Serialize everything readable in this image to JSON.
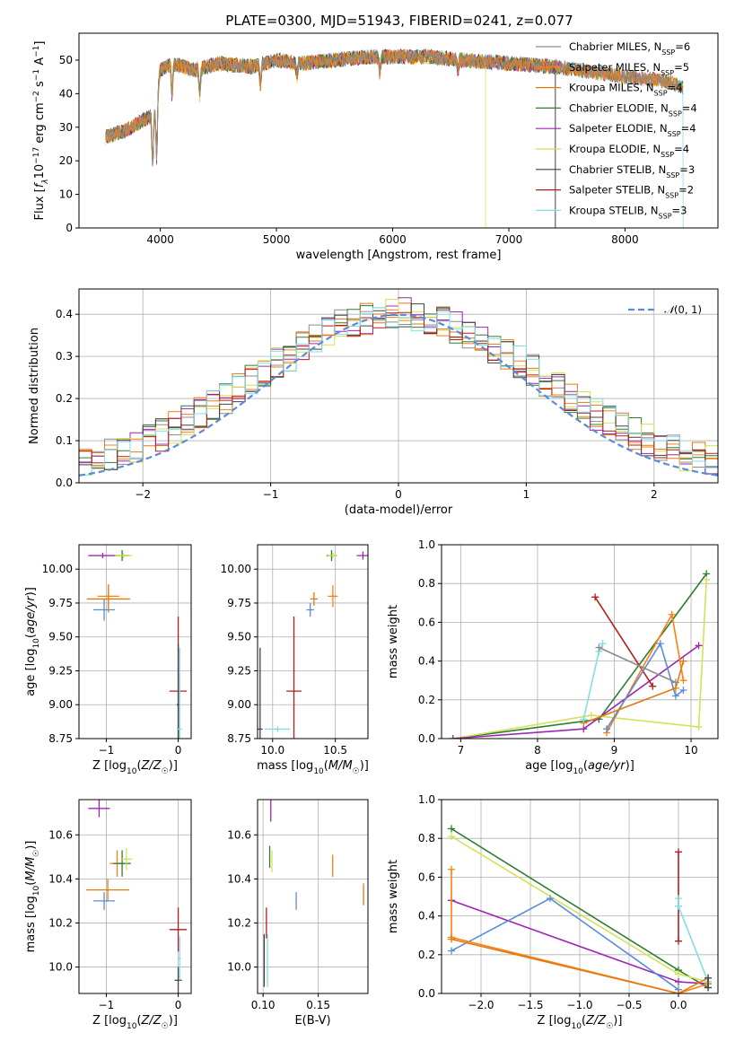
{
  "figure": {
    "title": "PLATE=0300, MJD=51943, FIBERID=0241, z=0.077"
  },
  "colors": {
    "Chabrier MILES": "#8c8c8c",
    "Salpeter MILES": "#ff7f0e",
    "Kroupa MILES": "#e07a10",
    "Chabrier ELODIE": "#2e7d32",
    "Salpeter ELODIE": "#9c27b0",
    "Kroupa ELODIE": "#d4e157",
    "Chabrier STELIB": "#424242",
    "Salpeter STELIB": "#b71c1c",
    "Kroupa STELIB": "#80deea",
    "gaussian": "#5b8bd8"
  },
  "chart_data": [
    {
      "id": "spectrum",
      "type": "line",
      "xlabel": "wavelength [Angstrom, rest frame]",
      "ylabel": "Flux [f_λ 10^-17 erg cm^-2 s^-1 A^-1]",
      "xlim": [
        3300,
        8800
      ],
      "ylim": [
        0,
        58
      ],
      "xticks": [
        4000,
        5000,
        6000,
        7000,
        8000
      ],
      "yticks": [
        0,
        10,
        20,
        30,
        40,
        50
      ],
      "grid": false,
      "legend_position": "right",
      "legend": [
        "Chabrier MILES, N_SSP=6",
        "Salpeter MILES, N_SSP=5",
        "Kroupa MILES, N_SSP=4",
        "Chabrier ELODIE, N_SSP=4",
        "Salpeter ELODIE, N_SSP=4",
        "Kroupa ELODIE, N_SSP=4",
        "Chabrier STELIB, N_SSP=3",
        "Salpeter STELIB, N_SSP=2",
        "Kroupa STELIB, N_SSP=3"
      ],
      "continuum": [
        [
          3530,
          27
        ],
        [
          3700,
          29
        ],
        [
          3850,
          32
        ],
        [
          3950,
          34
        ],
        [
          4000,
          47
        ],
        [
          4100,
          49
        ],
        [
          4300,
          47
        ],
        [
          4500,
          49
        ],
        [
          4800,
          48
        ],
        [
          5000,
          50
        ],
        [
          5200,
          49
        ],
        [
          5500,
          50
        ],
        [
          5800,
          51
        ],
        [
          6000,
          51
        ],
        [
          6300,
          51
        ],
        [
          6600,
          50
        ],
        [
          7000,
          49
        ],
        [
          7400,
          48
        ],
        [
          7800,
          46
        ],
        [
          8000,
          45
        ],
        [
          8300,
          44
        ],
        [
          8500,
          42
        ]
      ],
      "absorption_lines": [
        [
          3934,
          15
        ],
        [
          3969,
          18
        ],
        [
          4101,
          10
        ],
        [
          4340,
          8
        ],
        [
          4861,
          6
        ],
        [
          5175,
          4
        ],
        [
          5890,
          5
        ],
        [
          6563,
          3
        ]
      ]
    },
    {
      "id": "residuals",
      "type": "step",
      "xlabel": "(data-model)/error",
      "ylabel": "Normed distribution",
      "xlim": [
        -2.5,
        2.5
      ],
      "ylim": [
        0,
        0.46
      ],
      "xticks": [
        -2,
        -1,
        0,
        1,
        2
      ],
      "yticks": [
        0.0,
        0.1,
        0.2,
        0.3,
        0.4
      ],
      "grid": true,
      "legend_position": "upper right",
      "legend": [
        "N(0,1)"
      ],
      "bin_width": 0.1,
      "bin_start": -2.5,
      "noise_amplitude": 0.04
    },
    {
      "id": "age-vs-Z",
      "type": "errorbar",
      "xlabel": "Z [log10(Z/Z☉)]",
      "ylabel": "age [log10(age/yr)]",
      "xlim": [
        -1.38,
        0.18
      ],
      "ylim": [
        8.75,
        10.18
      ],
      "xticks": [
        -1,
        0
      ],
      "yticks": [
        8.75,
        9.0,
        9.25,
        9.5,
        9.75,
        10.0
      ],
      "grid": true,
      "points": [
        {
          "c": "Salpeter ELODIE",
          "x": -1.05,
          "y": 10.1,
          "xe": 0.2,
          "ye": 0.02
        },
        {
          "c": "Chabrier ELODIE",
          "x": -0.78,
          "y": 10.1,
          "xe": 0.1,
          "ye": 0.04
        },
        {
          "c": "Kroupa ELODIE",
          "x": -0.76,
          "y": 10.1,
          "xe": 0.12,
          "ye": 0.02
        },
        {
          "c": "Salpeter MILES",
          "x": -0.97,
          "y": 9.8,
          "xe": 0.15,
          "ye": 0.09
        },
        {
          "c": "Kroupa MILES",
          "x": -0.97,
          "y": 9.78,
          "xe": 0.3,
          "ye": 0.1
        },
        {
          "c": "gaussian",
          "x": -1.03,
          "y": 9.7,
          "xe": 0.15,
          "ye": 0.08
        },
        {
          "c": "Salpeter STELIB",
          "x": 0.0,
          "y": 9.1,
          "xe": 0.12,
          "ye": 0.55
        },
        {
          "c": "Chabrier STELIB",
          "x": 0.0,
          "y": 9.0,
          "xe": 0.02,
          "ye": 0.45
        },
        {
          "c": "Kroupa STELIB",
          "x": 0.02,
          "y": 8.82,
          "xe": 0.04,
          "ye": 0.6
        }
      ]
    },
    {
      "id": "age-vs-mass",
      "type": "errorbar",
      "xlabel": "mass [log10(M/M☉)]",
      "ylabel": "",
      "xlim": [
        9.88,
        10.76
      ],
      "ylim": [
        8.75,
        10.18
      ],
      "xticks": [
        10.0,
        10.5
      ],
      "yticks": [
        8.75,
        9.0,
        9.25,
        9.5,
        9.75,
        10.0
      ],
      "grid": true,
      "points": [
        {
          "c": "Salpeter ELODIE",
          "x": 10.72,
          "y": 10.1,
          "xe": 0.05,
          "ye": 0.03
        },
        {
          "c": "Chabrier ELODIE",
          "x": 10.47,
          "y": 10.1,
          "xe": 0.04,
          "ye": 0.04
        },
        {
          "c": "Kroupa ELODIE",
          "x": 10.48,
          "y": 10.1,
          "xe": 0.04,
          "ye": 0.02
        },
        {
          "c": "Kroupa MILES",
          "x": 10.33,
          "y": 9.78,
          "xe": 0.03,
          "ye": 0.05
        },
        {
          "c": "Salpeter MILES",
          "x": 10.48,
          "y": 9.8,
          "xe": 0.04,
          "ye": 0.08
        },
        {
          "c": "gaussian",
          "x": 10.3,
          "y": 9.7,
          "xe": 0.03,
          "ye": 0.05
        },
        {
          "c": "Salpeter STELIB",
          "x": 10.17,
          "y": 9.1,
          "xe": 0.06,
          "ye": 0.55
        },
        {
          "c": "Chabrier STELIB",
          "x": 9.9,
          "y": 8.82,
          "xe": 0.02,
          "ye": 0.6
        },
        {
          "c": "Kroupa STELIB",
          "x": 10.04,
          "y": 8.82,
          "xe": 0.1,
          "ye": 0.02
        }
      ]
    },
    {
      "id": "weight-vs-age",
      "type": "line",
      "xlabel": "age [log10(age/yr)]",
      "ylabel": "mass weight",
      "xlim": [
        6.75,
        10.35
      ],
      "ylim": [
        0,
        1.0
      ],
      "xticks": [
        7,
        8,
        9,
        10
      ],
      "yticks": [
        0.0,
        0.2,
        0.4,
        0.6,
        0.8,
        1.0
      ],
      "grid": true,
      "series": [
        {
          "c": "Chabrier ELODIE",
          "x": [
            6.9,
            8.8,
            10.2
          ],
          "y": [
            0.0,
            0.1,
            0.85
          ]
        },
        {
          "c": "Kroupa ELODIE",
          "x": [
            6.9,
            8.7,
            10.1,
            10.2
          ],
          "y": [
            0.0,
            0.12,
            0.06,
            0.82
          ]
        },
        {
          "c": "Salpeter ELODIE",
          "x": [
            6.9,
            8.6,
            10.1
          ],
          "y": [
            0.0,
            0.05,
            0.48
          ]
        },
        {
          "c": "Salpeter STELIB",
          "x": [
            8.75,
            9.5
          ],
          "y": [
            0.73,
            0.27
          ]
        },
        {
          "c": "Salpeter MILES",
          "x": [
            8.9,
            9.75,
            9.9
          ],
          "y": [
            0.03,
            0.64,
            0.3
          ]
        },
        {
          "c": "gaussian",
          "x": [
            8.9,
            9.6,
            9.8,
            9.9
          ],
          "y": [
            0.05,
            0.49,
            0.22,
            0.25
          ]
        },
        {
          "c": "Kroupa MILES",
          "x": [
            8.6,
            9.8,
            9.9
          ],
          "y": [
            0.08,
            0.26,
            0.4
          ]
        },
        {
          "c": "Kroupa STELIB",
          "x": [
            8.6,
            8.8,
            8.85
          ],
          "y": [
            0.1,
            0.45,
            0.49
          ]
        },
        {
          "c": "Chabrier MILES",
          "x": [
            8.8,
            9.8
          ],
          "y": [
            0.47,
            0.29
          ]
        }
      ]
    },
    {
      "id": "mass-vs-Z",
      "type": "errorbar",
      "xlabel": "Z [log10(Z/Z☉)]",
      "ylabel": "mass [log10(M/M☉)]",
      "xlim": [
        -1.38,
        0.18
      ],
      "ylim": [
        9.88,
        10.76
      ],
      "xticks": [
        -1,
        0
      ],
      "yticks": [
        10.0,
        10.2,
        10.4,
        10.6
      ],
      "grid": true,
      "points": [
        {
          "c": "Salpeter ELODIE",
          "x": -1.1,
          "y": 10.72,
          "xe": 0.15,
          "ye": 0.04
        },
        {
          "c": "Salpeter MILES",
          "x": -0.85,
          "y": 10.47,
          "xe": 0.1,
          "ye": 0.06
        },
        {
          "c": "Chabrier ELODIE",
          "x": -0.78,
          "y": 10.47,
          "xe": 0.12,
          "ye": 0.06
        },
        {
          "c": "Kroupa ELODIE",
          "x": -0.72,
          "y": 10.49,
          "xe": 0.08,
          "ye": 0.05
        },
        {
          "c": "Kroupa MILES",
          "x": -0.98,
          "y": 10.35,
          "xe": 0.3,
          "ye": 0.05
        },
        {
          "c": "gaussian",
          "x": -1.03,
          "y": 10.3,
          "xe": 0.15,
          "ye": 0.04
        },
        {
          "c": "Salpeter STELIB",
          "x": 0.0,
          "y": 10.17,
          "xe": 0.12,
          "ye": 0.1
        },
        {
          "c": "Chabrier STELIB",
          "x": 0.0,
          "y": 9.94,
          "xe": 0.05,
          "ye": 0.06
        },
        {
          "c": "Kroupa STELIB",
          "x": 0.02,
          "y": 10.04,
          "xe": 0.02,
          "ye": 0.1
        }
      ]
    },
    {
      "id": "mass-vs-EBV",
      "type": "errorbar",
      "xlabel": "E(B-V)",
      "ylabel": "",
      "xlim": [
        0.095,
        0.195
      ],
      "ylim": [
        9.88,
        10.76
      ],
      "xticks": [
        0.1,
        0.15
      ],
      "yticks": [
        10.0,
        10.2,
        10.4,
        10.6
      ],
      "grid": true,
      "points": [
        {
          "c": "Salpeter ELODIE",
          "x": 0.107,
          "y": 10.72,
          "xe": 0,
          "ye": 0.06
        },
        {
          "c": "Chabrier ELODIE",
          "x": 0.106,
          "y": 10.5,
          "xe": 0,
          "ye": 0.05
        },
        {
          "c": "Kroupa ELODIE",
          "x": 0.108,
          "y": 10.48,
          "xe": 0,
          "ye": 0.05
        },
        {
          "c": "Salpeter MILES",
          "x": 0.163,
          "y": 10.46,
          "xe": 0,
          "ye": 0.05
        },
        {
          "c": "Kroupa MILES",
          "x": 0.191,
          "y": 10.33,
          "xe": 0,
          "ye": 0.05
        },
        {
          "c": "gaussian",
          "x": 0.13,
          "y": 10.3,
          "xe": 0,
          "ye": 0.04
        },
        {
          "c": "Salpeter STELIB",
          "x": 0.103,
          "y": 10.2,
          "xe": 0,
          "ye": 0.07
        },
        {
          "c": "Chabrier STELIB",
          "x": 0.101,
          "y": 10.03,
          "xe": 0,
          "ye": 0.12
        },
        {
          "c": "Kroupa STELIB",
          "x": 0.104,
          "y": 10.03,
          "xe": 0,
          "ye": 0.12
        }
      ]
    },
    {
      "id": "weight-vs-Z",
      "type": "line",
      "xlabel": "Z [log10(Z/Z☉)]",
      "ylabel": "mass weight",
      "xlim": [
        -2.4,
        0.4
      ],
      "ylim": [
        0,
        1.0
      ],
      "xticks": [
        -2.0,
        -1.5,
        -1.0,
        -0.5,
        0.0
      ],
      "yticks": [
        0.0,
        0.2,
        0.4,
        0.6,
        0.8,
        1.0
      ],
      "grid": true,
      "series": [
        {
          "c": "Chabrier ELODIE",
          "x": [
            -2.3,
            0.0,
            0.3
          ],
          "y": [
            0.85,
            0.12,
            0.03
          ]
        },
        {
          "c": "Kroupa ELODIE",
          "x": [
            -2.3,
            0.0,
            0.3
          ],
          "y": [
            0.81,
            0.1,
            0.06
          ]
        },
        {
          "c": "Salpeter ELODIE",
          "x": [
            -2.3,
            0.0,
            0.3
          ],
          "y": [
            0.48,
            0.06,
            0.05
          ]
        },
        {
          "c": "gaussian",
          "x": [
            -2.3,
            -1.3,
            0.0
          ],
          "y": [
            0.22,
            0.49,
            0.02
          ]
        },
        {
          "c": "Salpeter MILES",
          "x": [
            -2.3,
            -2.3,
            0.0,
            0.3
          ],
          "y": [
            0.64,
            0.29,
            0.0,
            0.05
          ]
        },
        {
          "c": "Kroupa MILES",
          "x": [
            -2.3,
            0.0,
            0.3
          ],
          "y": [
            0.28,
            0.0,
            0.08
          ]
        },
        {
          "c": "Salpeter STELIB",
          "x": [
            0.0,
            0.0
          ],
          "y": [
            0.27,
            0.73
          ]
        },
        {
          "c": "Kroupa STELIB",
          "x": [
            0.0,
            0.0,
            0.3
          ],
          "y": [
            0.49,
            0.45,
            0.06
          ]
        },
        {
          "c": "Chabrier STELIB",
          "x": [
            0.3,
            0.3
          ],
          "y": [
            0.03,
            0.08
          ]
        }
      ]
    }
  ]
}
